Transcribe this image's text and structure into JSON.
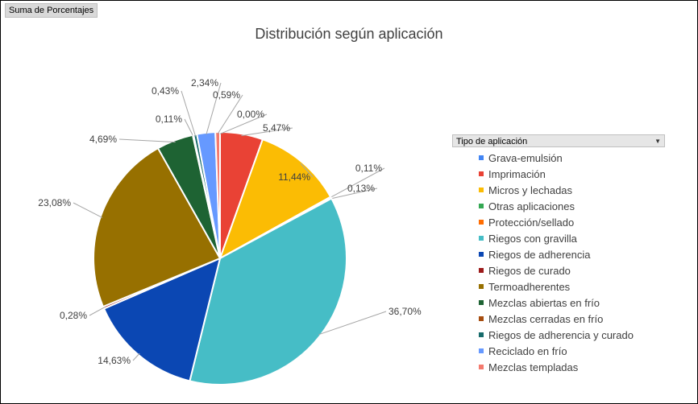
{
  "field_button": "Suma de Porcentajes",
  "legend_header": "Tipo de aplicación",
  "chart_data": {
    "type": "pie",
    "title": "Distribución según aplicación",
    "legend_position": "right",
    "slices": [
      {
        "name": "Imprimación",
        "value": 5.47,
        "label": "5,47%",
        "color": "#e94235"
      },
      {
        "name": "Micros y lechadas",
        "value": 11.44,
        "label": "11,44%",
        "color": "#fbbc04"
      },
      {
        "name": "Otras aplicaciones",
        "value": 0.11,
        "label": "0,11%",
        "color": "#34a853"
      },
      {
        "name": "Protección/sellado",
        "value": 0.13,
        "label": "0,13%",
        "color": "#ff6d01"
      },
      {
        "name": "Riegos con gravilla",
        "value": 36.7,
        "label": "36,70%",
        "color": "#46bdc6"
      },
      {
        "name": "Riegos de adherencia",
        "value": 14.63,
        "label": "14,63%",
        "color": "#0b47b3"
      },
      {
        "name": "Riegos de curado",
        "value": 0.28,
        "label": "0,28%",
        "color": "#9c1a1a"
      },
      {
        "name": "Termoadherentes",
        "value": 23.08,
        "label": "23,08%",
        "color": "#977000"
      },
      {
        "name": "Mezclas abiertas en frío",
        "value": 4.69,
        "label": "4,69%",
        "color": "#1e6333"
      },
      {
        "name": "Mezclas cerradas en frío",
        "value": 0.11,
        "label": "0,11%",
        "color": "#a64d0f"
      },
      {
        "name": "Riegos de adherencia y curado",
        "value": 0.43,
        "label": "0,43%",
        "color": "#176b6b"
      },
      {
        "name": "Reciclado en frío",
        "value": 2.34,
        "label": "2,34%",
        "color": "#6699ff"
      },
      {
        "name": "Mezclas templadas",
        "value": 0.59,
        "label": "0,59%",
        "color": "#f47a6e"
      },
      {
        "name": "Grava-emulsión",
        "value": 0.0,
        "label": "0,00%",
        "color": "#4285f4"
      }
    ],
    "legend": [
      {
        "name": "Grava-emulsión",
        "color": "#4285f4"
      },
      {
        "name": "Imprimación",
        "color": "#e94235"
      },
      {
        "name": "Micros y lechadas",
        "color": "#fbbc04"
      },
      {
        "name": "Otras aplicaciones",
        "color": "#34a853"
      },
      {
        "name": "Protección/sellado",
        "color": "#ff6d01"
      },
      {
        "name": "Riegos con gravilla",
        "color": "#46bdc6"
      },
      {
        "name": "Riegos de adherencia",
        "color": "#0b47b3"
      },
      {
        "name": "Riegos de curado",
        "color": "#9c1a1a"
      },
      {
        "name": "Termoadherentes",
        "color": "#977000"
      },
      {
        "name": "Mezclas abiertas en frío",
        "color": "#1e6333"
      },
      {
        "name": "Mezclas cerradas en frío",
        "color": "#a64d0f"
      },
      {
        "name": "Riegos de adherencia y curado",
        "color": "#176b6b"
      },
      {
        "name": "Reciclado en frío",
        "color": "#6699ff"
      },
      {
        "name": "Mezclas templadas",
        "color": "#f47a6e"
      }
    ]
  }
}
